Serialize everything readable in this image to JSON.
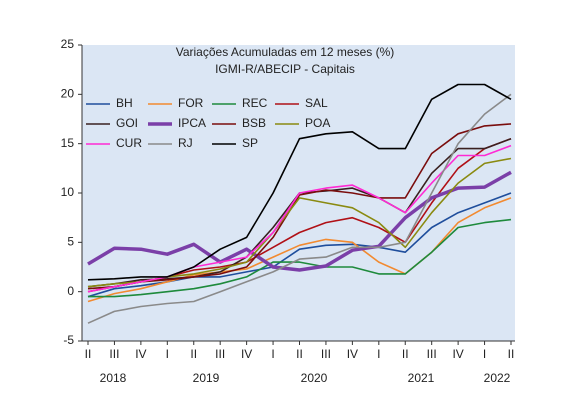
{
  "chart_data": {
    "type": "line",
    "title": "Variações Acumuladas em 12 meses (%)",
    "subtitle": "IGMI-R/ABECIP - Capitais",
    "categories": [
      "II",
      "III",
      "IV",
      "I",
      "II",
      "III",
      "IV",
      "I",
      "II",
      "III",
      "IV",
      "I",
      "II",
      "III",
      "IV",
      "I",
      "II"
    ],
    "year_labels": [
      "2018",
      "2019",
      "2020",
      "2021",
      "2022"
    ],
    "ylim": [
      -5,
      25
    ],
    "yticks": [
      -5,
      0,
      5,
      10,
      15,
      20,
      25
    ],
    "series": [
      {
        "name": "BH",
        "color": "#1f4e9c",
        "values": [
          -0.5,
          0.3,
          0.6,
          1,
          1.5,
          1.5,
          2,
          2.5,
          4.3,
          4.7,
          4.8,
          4.5,
          4,
          6.5,
          8,
          9,
          10
        ]
      },
      {
        "name": "FOR",
        "color": "#f28a30",
        "values": [
          -1,
          -0.2,
          0.3,
          1,
          1.7,
          2,
          2.3,
          3.5,
          4.7,
          5.3,
          5,
          3,
          1.8,
          4,
          7,
          8.5,
          9.5
        ]
      },
      {
        "name": "REC",
        "color": "#1e8a3c",
        "values": [
          -0.5,
          -0.5,
          -0.3,
          0,
          0.3,
          0.8,
          1.5,
          3,
          3,
          2.5,
          2.5,
          1.8,
          1.8,
          4,
          6.5,
          7,
          7.3
        ]
      },
      {
        "name": "SAL",
        "color": "#b01016",
        "values": [
          0,
          0.5,
          1,
          1.5,
          2.2,
          2.5,
          3,
          4.5,
          6,
          7,
          7.5,
          6.5,
          5,
          9,
          12.5,
          14.5,
          15.5
        ]
      },
      {
        "name": "GOI",
        "color": "#3a2020",
        "values": [
          0.5,
          0.8,
          1.2,
          1.3,
          1.5,
          2,
          3.5,
          6.5,
          10,
          10.2,
          10.5,
          9.5,
          8,
          12,
          14.5,
          14.5,
          15.5
        ]
      },
      {
        "name": "IPCA",
        "color": "#7b3fa8",
        "width": 3.5,
        "values": [
          2.8,
          4.4,
          4.3,
          3.8,
          4.8,
          3,
          4.3,
          2.5,
          2.2,
          2.6,
          4.2,
          4.6,
          7.5,
          9.5,
          10.5,
          10.6,
          12.1
        ]
      },
      {
        "name": "BSB",
        "color": "#7a0d0d",
        "values": [
          0.3,
          0.5,
          1,
          1.2,
          1.5,
          1.8,
          2.5,
          5.5,
          9.8,
          10.3,
          10,
          9.5,
          9.5,
          14,
          16,
          16.8,
          17
        ]
      },
      {
        "name": "POA",
        "color": "#8a8a10",
        "values": [
          0.5,
          0.8,
          1,
          1.5,
          1.8,
          2.3,
          3,
          6,
          9.5,
          9,
          8.5,
          7,
          4.5,
          8,
          11,
          13,
          13.5
        ]
      },
      {
        "name": "CUR",
        "color": "#ff2ad4",
        "values": [
          0,
          0.5,
          1,
          1.5,
          2.5,
          3,
          3.5,
          6,
          10,
          10.5,
          10.8,
          9.5,
          8,
          11,
          13.8,
          13.8,
          14.8
        ]
      },
      {
        "name": "RJ",
        "color": "#8a8a8a",
        "values": [
          -3.2,
          -2,
          -1.5,
          -1.2,
          -1,
          0,
          1,
          2,
          3.3,
          3.5,
          4.5,
          4.5,
          5,
          10,
          15,
          18,
          20
        ]
      },
      {
        "name": "SP",
        "color": "#000000",
        "values": [
          1.2,
          1.3,
          1.5,
          1.5,
          2.5,
          4.3,
          5.5,
          10,
          15.5,
          16,
          16.2,
          14.5,
          14.5,
          19.5,
          21,
          21,
          19.5
        ]
      }
    ]
  }
}
